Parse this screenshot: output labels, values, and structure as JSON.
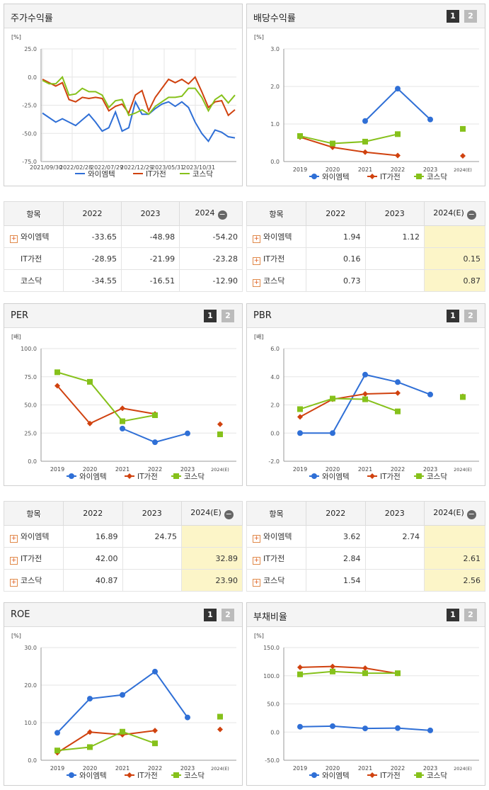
{
  "colors": {
    "wai": "#2f6fd6",
    "it": "#d0420f",
    "kosdaq": "#86c11b"
  },
  "legend": [
    "와이엠텍",
    "IT가전",
    "코스닥"
  ],
  "panels": [
    {
      "id": "stock",
      "title": "주가수익률",
      "pages": []
    },
    {
      "id": "div",
      "title": "배당수익률",
      "pages": [
        "1",
        "2"
      ]
    },
    {
      "id": "per",
      "title": "PER",
      "pages": [
        "1",
        "2"
      ]
    },
    {
      "id": "pbr",
      "title": "PBR",
      "pages": [
        "1",
        "2"
      ]
    },
    {
      "id": "roe",
      "title": "ROE",
      "pages": [
        "1",
        "2"
      ]
    },
    {
      "id": "debt",
      "title": "부채비율",
      "pages": [
        "1",
        "2"
      ]
    }
  ],
  "tables": [
    {
      "id": "stock",
      "header": [
        "항목",
        "2022",
        "2023",
        "2024"
      ],
      "estimate": false,
      "rows": [
        {
          "name": "와이엠텍",
          "plus": true,
          "values": [
            "-33.65",
            "-48.98",
            "-54.20"
          ]
        },
        {
          "name": "IT가전",
          "plus": false,
          "values": [
            "-28.95",
            "-21.99",
            "-23.28"
          ]
        },
        {
          "name": "코스닥",
          "plus": false,
          "values": [
            "-34.55",
            "-16.51",
            "-12.90"
          ]
        }
      ]
    },
    {
      "id": "div",
      "header": [
        "항목",
        "2022",
        "2023",
        "2024(E)"
      ],
      "estimate": true,
      "rows": [
        {
          "name": "와이엠텍",
          "plus": true,
          "values": [
            "1.94",
            "1.12",
            ""
          ]
        },
        {
          "name": "IT가전",
          "plus": true,
          "values": [
            "0.16",
            "",
            "0.15"
          ]
        },
        {
          "name": "코스닥",
          "plus": true,
          "values": [
            "0.73",
            "",
            "0.87"
          ]
        }
      ]
    },
    {
      "id": "per",
      "header": [
        "항목",
        "2022",
        "2023",
        "2024(E)"
      ],
      "estimate": true,
      "rows": [
        {
          "name": "와이엠텍",
          "plus": true,
          "values": [
            "16.89",
            "24.75",
            ""
          ]
        },
        {
          "name": "IT가전",
          "plus": true,
          "values": [
            "42.00",
            "",
            "32.89"
          ]
        },
        {
          "name": "코스닥",
          "plus": true,
          "values": [
            "40.87",
            "",
            "23.90"
          ]
        }
      ]
    },
    {
      "id": "pbr",
      "header": [
        "항목",
        "2022",
        "2023",
        "2024(E)"
      ],
      "estimate": true,
      "rows": [
        {
          "name": "와이엠텍",
          "plus": true,
          "values": [
            "3.62",
            "2.74",
            ""
          ]
        },
        {
          "name": "IT가전",
          "plus": true,
          "values": [
            "2.84",
            "",
            "2.61"
          ]
        },
        {
          "name": "코스닥",
          "plus": true,
          "values": [
            "1.54",
            "",
            "2.56"
          ]
        }
      ]
    }
  ],
  "chart_data": [
    {
      "id": "stock",
      "type": "line",
      "unit": "[%]",
      "ylim": [
        -75,
        25
      ],
      "yticks": [
        "25.0",
        "0.0",
        "-25.0",
        "-50.0",
        "-75.0"
      ],
      "x_labels": [
        "2021/09/30",
        "2022/02/28",
        "2022/07/29",
        "2022/12/29",
        "2023/05/31",
        "2023/10/31"
      ],
      "series": [
        {
          "name": "와이엠텍",
          "values": [
            -32,
            -36,
            -40,
            -37,
            -40,
            -43,
            -38,
            -33,
            -40,
            -48,
            -45,
            -31,
            -48,
            -45,
            -22,
            -33,
            -33,
            -28,
            -24,
            -22,
            -26,
            -22,
            -27,
            -40,
            -50,
            -57,
            -47,
            -49,
            -53,
            -54
          ]
        },
        {
          "name": "IT가전",
          "values": [
            -2,
            -5,
            -8,
            -5,
            -20,
            -22,
            -18,
            -19,
            -18,
            -19,
            -30,
            -26,
            -24,
            -32,
            -16,
            -12,
            -30,
            -18,
            -10,
            -2,
            -5,
            -2,
            -6,
            0,
            -13,
            -27,
            -22,
            -21,
            -34,
            -29
          ]
        },
        {
          "name": "코스닥",
          "values": [
            -3,
            -6,
            -6,
            0,
            -16,
            -15,
            -10,
            -13,
            -13,
            -16,
            -27,
            -21,
            -20,
            -34,
            -32,
            -29,
            -33,
            -26,
            -22,
            -18,
            -18,
            -17,
            -10,
            -10,
            -18,
            -30,
            -20,
            -16,
            -23,
            -16
          ]
        }
      ]
    },
    {
      "id": "div",
      "type": "line",
      "unit": "[%]",
      "ylim": [
        0,
        3
      ],
      "yticks": [
        "3.0",
        "2.0",
        "1.0",
        "0.0"
      ],
      "categories": [
        "2019",
        "2020",
        "2021",
        "2022",
        "2023",
        "2024(E)"
      ],
      "series": [
        {
          "name": "와이엠텍",
          "values": [
            null,
            null,
            1.08,
            1.94,
            1.12,
            null
          ]
        },
        {
          "name": "IT가전",
          "values": [
            0.65,
            0.38,
            0.25,
            0.16,
            null,
            0.15
          ]
        },
        {
          "name": "코스닥",
          "values": [
            0.68,
            0.48,
            0.53,
            0.73,
            null,
            0.87
          ]
        }
      ]
    },
    {
      "id": "per",
      "type": "line",
      "unit": "[배]",
      "ylim": [
        0,
        100
      ],
      "yticks": [
        "100.0",
        "75.0",
        "50.0",
        "25.0",
        "0.0"
      ],
      "categories": [
        "2019",
        "2020",
        "2021",
        "2022",
        "2023",
        "2024(E)"
      ],
      "series": [
        {
          "name": "와이엠텍",
          "values": [
            null,
            null,
            29.0,
            16.89,
            24.75,
            null
          ]
        },
        {
          "name": "IT가전",
          "values": [
            67.0,
            33.5,
            47.0,
            42.0,
            null,
            32.89
          ]
        },
        {
          "name": "코스닥",
          "values": [
            79.0,
            70.5,
            35.5,
            40.87,
            null,
            23.9
          ]
        }
      ]
    },
    {
      "id": "pbr",
      "type": "line",
      "unit": "[배]",
      "ylim": [
        -2,
        6
      ],
      "yticks": [
        "6.0",
        "4.0",
        "2.0",
        "0.0",
        "-2.0"
      ],
      "categories": [
        "2019",
        "2020",
        "2021",
        "2022",
        "2023",
        "2024(E)"
      ],
      "series": [
        {
          "name": "와이엠텍",
          "values": [
            0.0,
            0.0,
            4.15,
            3.62,
            2.74,
            null
          ]
        },
        {
          "name": "IT가전",
          "values": [
            1.15,
            2.4,
            2.78,
            2.84,
            null,
            2.61
          ]
        },
        {
          "name": "코스닥",
          "values": [
            1.7,
            2.45,
            2.4,
            1.54,
            null,
            2.56
          ]
        }
      ]
    },
    {
      "id": "roe",
      "type": "line",
      "unit": "[%]",
      "ylim": [
        0,
        30
      ],
      "yticks": [
        "30.0",
        "20.0",
        "10.0",
        "0.0"
      ],
      "categories": [
        "2019",
        "2020",
        "2021",
        "2022",
        "2023",
        "2024(E)"
      ],
      "series": [
        {
          "name": "와이엠텍",
          "values": [
            7.3,
            16.4,
            17.4,
            23.6,
            11.4,
            null
          ]
        },
        {
          "name": "IT가전",
          "values": [
            2.0,
            7.5,
            6.8,
            7.9,
            null,
            8.2
          ]
        },
        {
          "name": "코스닥",
          "values": [
            2.6,
            3.5,
            7.6,
            4.5,
            null,
            11.6
          ]
        }
      ]
    },
    {
      "id": "debt",
      "type": "line",
      "unit": "[%]",
      "ylim": [
        -50,
        150
      ],
      "yticks": [
        "150.0",
        "100.0",
        "50.0",
        "0.0",
        "-50.0"
      ],
      "categories": [
        "2019",
        "2020",
        "2021",
        "2022",
        "2023",
        "2024(E)"
      ],
      "series": [
        {
          "name": "와이엠텍",
          "values": [
            9.5,
            10.5,
            6.5,
            7.0,
            3.0,
            null
          ]
        },
        {
          "name": "IT가전",
          "values": [
            115.0,
            116.5,
            113.5,
            104.0,
            null,
            null
          ]
        },
        {
          "name": "코스닥",
          "values": [
            102.5,
            107.5,
            104.5,
            104.5,
            null,
            null
          ]
        }
      ]
    }
  ]
}
